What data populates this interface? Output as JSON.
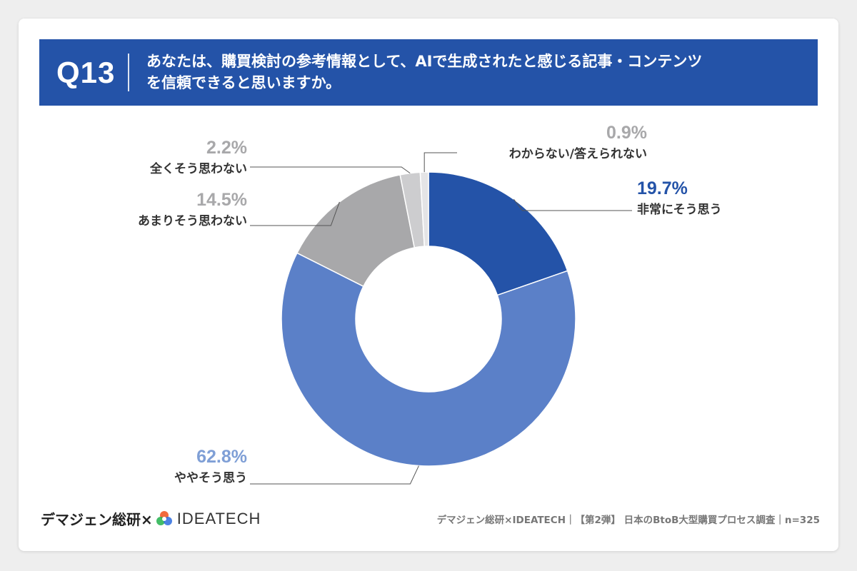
{
  "banner": {
    "qnum": "Q13",
    "line1": "あなたは、購買検討の参考情報として、AIで生成されたと感じる記事・コンテンツ",
    "line2": "を信頼できると思いますか。"
  },
  "chart_data": {
    "type": "pie",
    "donut": true,
    "title": "",
    "slices": [
      {
        "label": "非常にそう思う",
        "value": 19.7,
        "display": "19.7%",
        "color": "#2453a8",
        "pct_color": "#2453a8"
      },
      {
        "label": "ややそう思う",
        "value": 62.8,
        "display": "62.8%",
        "color": "#5b80c8",
        "pct_color": "#7f9fd6"
      },
      {
        "label": "あまりそう思わない",
        "value": 14.5,
        "display": "14.5%",
        "color": "#a8a8aa",
        "pct_color": "#a8a8aa"
      },
      {
        "label": "全くそう思わない",
        "value": 2.2,
        "display": "2.2%",
        "color": "#cdcdcf",
        "pct_color": "#a8a8aa"
      },
      {
        "label": "わからない/答えられない",
        "value": 0.9,
        "display": "0.9%",
        "color": "#e4e4e6",
        "pct_color": "#a8a8aa"
      }
    ]
  },
  "footer": {
    "brand": "デマジェン総研×",
    "logo_text": "IDEATECH",
    "source": "デマジェン総研×IDEATECH｜【第2弾】 日本のBtoB大型購買プロセス調査｜n=325"
  }
}
